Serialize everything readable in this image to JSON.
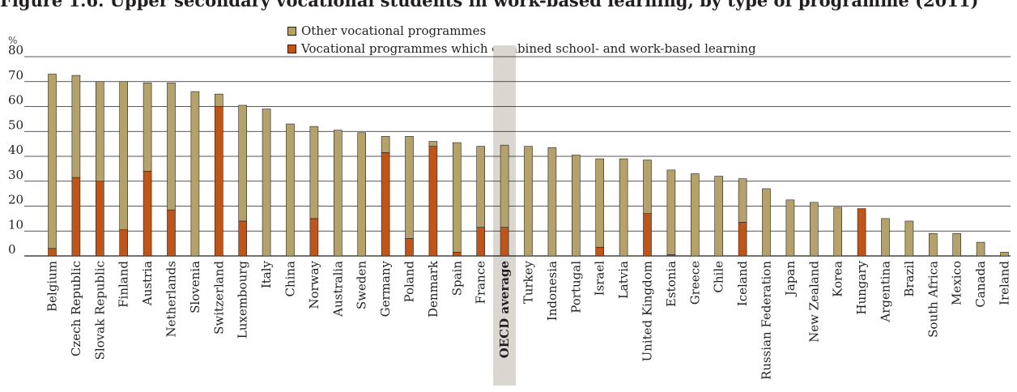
{
  "title": "",
  "legend": {
    "other_label": "Other vocational programmes",
    "combined_label": "Vocational programmes which combined school- and work-based learning"
  },
  "colors": {
    "other": "#b5a26a",
    "combined": "#c0551a",
    "oecd_highlight": "#d9d7d0",
    "grid": "#231f20"
  },
  "chart_data": {
    "type": "bar",
    "stacked": true,
    "ylabel": "%",
    "ylim": [
      0,
      80
    ],
    "yticks": [
      0,
      10,
      20,
      30,
      40,
      50,
      60,
      70,
      80
    ],
    "grid": true,
    "legend_position": "top",
    "highlighted_category": "OECD average",
    "categories": [
      "Belgium",
      "Czech Republic",
      "Slovak Republic",
      "Finland",
      "Austria",
      "Netherlands",
      "Slovenia",
      "Switzerland",
      "Luxembourg",
      "Italy",
      "China",
      "Norway",
      "Australia",
      "Sweden",
      "Germany",
      "Poland",
      "Denmark",
      "Spain",
      "France",
      "OECD average",
      "Turkey",
      "Indonesia",
      "Portugal",
      "Israel",
      "Latvia",
      "United Kingdom",
      "Estonia",
      "Greece",
      "Chile",
      "Iceland",
      "Russian Federation",
      "Japan",
      "New Zealand",
      "Korea",
      "Hungary",
      "Argentina",
      "Brazil",
      "South Africa",
      "Mexico",
      "Canada",
      "Ireland"
    ],
    "series": [
      {
        "name": "Vocational programmes which combined school- and work-based learning",
        "values": [
          3,
          31.5,
          30,
          10.5,
          34,
          18.5,
          0,
          60,
          14,
          0,
          0,
          15,
          0,
          0,
          41.5,
          7,
          44,
          1.5,
          11.5,
          11.5,
          0,
          0,
          0,
          3.5,
          0,
          17,
          0.5,
          0,
          0,
          13.5,
          0,
          0,
          0,
          0,
          19,
          0,
          0,
          0,
          0,
          0,
          0
        ]
      },
      {
        "name": "Other vocational programmes",
        "values": [
          70,
          41,
          40,
          59.5,
          35.5,
          51,
          66,
          5,
          46.5,
          59,
          53,
          37,
          50.5,
          49.5,
          6.5,
          41,
          2,
          44,
          32.5,
          33,
          44,
          43.5,
          40.5,
          35.5,
          39,
          21.5,
          34,
          33,
          32,
          17.5,
          27,
          22.5,
          21.5,
          19.5,
          0,
          15,
          14,
          9,
          9,
          5.5,
          1.5
        ]
      }
    ]
  }
}
